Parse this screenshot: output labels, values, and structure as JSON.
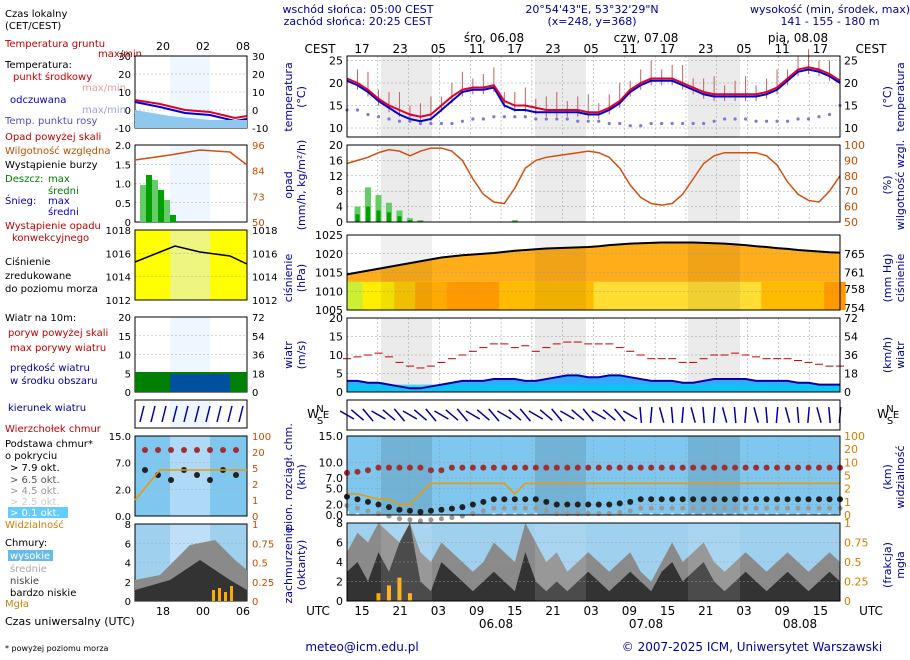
{
  "header": {
    "sunrise": "wschód słońca: 05:00 CEST",
    "sunset": "zachód słońca: 20:25 CEST",
    "coords": "20°54'43\"E, 53°32'29\"N",
    "grid": "(x=248, y=368)",
    "elevation_title": "wysokość (min, środek, max)",
    "elevation_values": "141 - 155 - 180 m"
  },
  "timeline": {
    "local_label": "CEST",
    "utc_label": "UTC",
    "local_hours": [
      "17",
      "23",
      "05",
      "11",
      "17",
      "23",
      "05",
      "11",
      "17",
      "23",
      "05",
      "11",
      "17"
    ],
    "utc_hours": [
      "15",
      "21",
      "03",
      "09",
      "15",
      "21",
      "03",
      "09",
      "15",
      "21",
      "03",
      "09",
      "15"
    ],
    "days_top": [
      "śro, 06.08",
      "czw, 07.08",
      "pią, 08.08"
    ],
    "days_bottom": [
      "06.08",
      "07.08",
      "08.08"
    ]
  },
  "legend": {
    "local_time": "Czas lokalny",
    "local_time_sub": "(CET/CEST)",
    "local_ticks": [
      "20",
      "02",
      "08"
    ],
    "utc_ticks": [
      "18",
      "00",
      "06"
    ],
    "utc_title": "Czas uniwersalny (UTC)",
    "ground_temp": "Temperatura gruntu",
    "ground_temp_sub": "max/min",
    "temperature": "Temperatura:",
    "temp_mid": "punkt środkowy",
    "temp_range": "max/min",
    "felt": "odczuwana",
    "felt_range": "max/min",
    "dew": "Temp. punktu rosy",
    "precip_above_scale": "Opad powyżej skali",
    "humidity": "Wilgotność względna",
    "storm": "Wystąpienie burzy",
    "rain": "Deszcz:",
    "snow": "Śnieg:",
    "max": "max",
    "mean": "średni",
    "precip_occurrence": "Wystąpienie opadu",
    "precip_convective": "konwekcyjnego",
    "pressure_1": "Ciśnienie",
    "pressure_2": "zredukowane",
    "pressure_3": "do poziomu morza",
    "wind_title": "Wiatr na 10m:",
    "gusts_above": "poryw powyżej skali",
    "gusts_max": "max porywy wiatru",
    "wind_speed": "prędkość wiatru",
    "wind_area": "w środku obszaru",
    "wind_dir": "kierunek wiatru",
    "cloud_top": "Wierzchołek chmur",
    "cloud_base_1": "Podstawa chmur*",
    "cloud_base_2": "o pokryciu",
    "okt": [
      "> 7.9 okt.",
      "> 6.5 okt.",
      "> 4.5 okt.",
      "> 2.5 okt.",
      "> 0.1 okt."
    ],
    "visibility": "Widzialność",
    "clouds": "Chmury:",
    "cloud_types": [
      "wysokie",
      "średnie",
      "niskie",
      "bardzo niskie"
    ],
    "fog": "Mgła",
    "footnote": "* powyżej poziomu morza"
  },
  "axes": {
    "temp_left": "temperatura",
    "temp_left_unit": "(°C)",
    "temp_right": "temperatura",
    "temp_right_unit": "(°C)",
    "precip_left": "opad",
    "precip_left_unit": "(mm/h, kg/m²/h)",
    "precip_right": "wilgotność wzgl.",
    "precip_right_unit": "(%)",
    "pres_left": "ciśnienie",
    "pres_left_unit": "(hPa)",
    "pres_right": "ciśnienie",
    "pres_right_unit": "(mm Hg)",
    "wind_left": "wiatr",
    "wind_left_unit": "(m/s)",
    "wind_right": "wiatr",
    "wind_right_unit": "(km/h)",
    "cloud_left_1": "pion. rozciągł. chm.",
    "cloud_left_unit": "(km)",
    "cloud_right": "widzialność",
    "cloud_right_unit": "(km)",
    "cover_left_1": "zachmurzenie",
    "cover_left_unit": "(oktanty)",
    "cover_right": "mgła",
    "cover_right_unit": "(frakcja)",
    "compass": [
      "N",
      "W",
      "S",
      "E"
    ]
  },
  "footer": {
    "email": "meteo@icm.edu.pl",
    "copyright": "© 2007-2025 ICM, Uniwersytet Warszawski"
  },
  "chart_data": [
    {
      "type": "line",
      "title": "temperatura",
      "ylabel": "(°C)",
      "ylim": [
        8,
        26
      ],
      "yticks": [
        10,
        15,
        20,
        25
      ],
      "series": [
        {
          "name": "temperatura",
          "color": "#e0002a",
          "values": [
            21,
            20,
            18.5,
            16.5,
            15,
            14,
            13,
            12.5,
            13,
            15,
            17,
            18.5,
            19,
            19,
            19.5,
            16,
            15,
            15,
            14.5,
            14,
            14,
            14,
            14,
            13.5,
            13.5,
            14.5,
            16,
            18.5,
            20,
            21,
            21,
            21,
            20,
            19,
            18,
            17.5,
            17.5,
            17.5,
            17.5,
            17.5,
            18,
            19,
            21,
            23,
            23.5,
            23,
            22,
            20.5
          ]
        },
        {
          "name": "odczuwana",
          "color": "#0000d0",
          "values": [
            20.5,
            19.5,
            18,
            16,
            14.5,
            13,
            12,
            11.5,
            12,
            14,
            16,
            18,
            18.5,
            18.5,
            19,
            15,
            14,
            14,
            13.5,
            13.5,
            13.5,
            13.5,
            13.5,
            13,
            13,
            14,
            15.5,
            18,
            19.5,
            20.5,
            20.5,
            20.5,
            19.5,
            18.5,
            17.5,
            17,
            17,
            17,
            17,
            17,
            17.5,
            18.5,
            20.5,
            22.5,
            23,
            22.5,
            21.5,
            20
          ]
        },
        {
          "name": "punkt rosy",
          "color": "#7b7bd8",
          "values": [
            14,
            14,
            13,
            12.5,
            12,
            11.5,
            11.5,
            11,
            11,
            11,
            11,
            11.5,
            12,
            12,
            12.5,
            12.5,
            12.5,
            12.5,
            12,
            12,
            12,
            12,
            11.5,
            11.5,
            11.5,
            11,
            11,
            10.5,
            10.5,
            11,
            11,
            11,
            11,
            11,
            11,
            11.5,
            12,
            12,
            12,
            11.5,
            11.5,
            11.5,
            11.5,
            12,
            12,
            12.5,
            13,
            15
          ]
        }
      ]
    },
    {
      "type": "bar",
      "title": "opad / wilgotność",
      "ylim": [
        0,
        20
      ],
      "yticks": [
        0,
        4,
        8,
        12,
        16,
        20
      ],
      "humidity_ylim": [
        50,
        100
      ],
      "humidity_ticks": [
        50,
        60,
        70,
        80,
        90,
        100
      ],
      "precip_max": [
        0,
        4,
        9,
        7,
        5,
        3,
        1,
        0.5,
        0,
        0,
        0,
        0,
        0,
        0,
        0,
        0,
        0.5,
        0,
        0,
        0,
        0,
        0,
        0,
        0,
        0,
        0,
        0,
        0,
        0,
        0,
        0,
        0,
        0,
        0,
        0,
        0,
        0,
        0,
        0,
        0,
        0,
        0,
        0,
        0,
        0,
        0,
        0,
        0
      ],
      "precip_mean": [
        0,
        2,
        4,
        3,
        2.5,
        1.5,
        0.5,
        0.2,
        0,
        0,
        0,
        0,
        0,
        0,
        0,
        0,
        0.2,
        0,
        0,
        0,
        0,
        0,
        0,
        0,
        0,
        0,
        0,
        0,
        0,
        0,
        0,
        0,
        0,
        0,
        0,
        0,
        0,
        0,
        0,
        0,
        0,
        0,
        0,
        0,
        0,
        0,
        0,
        0
      ],
      "humidity": [
        88,
        90,
        92,
        95,
        97,
        96,
        93,
        96,
        98,
        98,
        96,
        90,
        78,
        68,
        63,
        62,
        72,
        85,
        90,
        92,
        93,
        94,
        95,
        96,
        95,
        92,
        85,
        74,
        66,
        62,
        61,
        62,
        68,
        78,
        88,
        93,
        95,
        95,
        95,
        95,
        93,
        87,
        76,
        68,
        64,
        63,
        70,
        80
      ]
    },
    {
      "type": "area",
      "title": "ciśnienie",
      "ylim": [
        1005,
        1025
      ],
      "yticks": [
        1005,
        1010,
        1015,
        1020,
        1025
      ],
      "right_ticks": [
        "754",
        "758",
        "761",
        "765"
      ],
      "values": [
        1014.5,
        1015,
        1015.5,
        1016,
        1016.5,
        1017,
        1017.5,
        1018,
        1018.5,
        1019,
        1019.3,
        1019.6,
        1019.8,
        1020,
        1020.2,
        1020.5,
        1020.8,
        1021,
        1021.2,
        1021.4,
        1021.5,
        1021.6,
        1021.7,
        1021.8,
        1022,
        1022.3,
        1022.5,
        1022.7,
        1022.8,
        1022.9,
        1023,
        1023,
        1023,
        1023,
        1022.9,
        1022.8,
        1022.7,
        1022.5,
        1022.3,
        1022,
        1021.8,
        1021.5,
        1021.3,
        1021,
        1020.8,
        1020.6,
        1020.4,
        1020.3
      ]
    },
    {
      "type": "line",
      "title": "wiatr",
      "ylim": [
        0,
        20
      ],
      "yticks": [
        0,
        5,
        10,
        15,
        20
      ],
      "right_ticks": [
        "0",
        "18",
        "36",
        "54",
        "72"
      ],
      "speed": [
        3,
        3,
        2.5,
        2.5,
        2,
        1.5,
        1,
        1,
        1.5,
        2,
        2.5,
        3,
        3,
        3,
        3.5,
        3.5,
        3.5,
        3,
        3,
        3.5,
        4,
        4.5,
        4.5,
        4,
        4,
        4.5,
        4.5,
        4,
        3.5,
        3,
        3,
        3,
        2.5,
        2.5,
        3,
        3.5,
        3.5,
        3.5,
        3.5,
        3,
        3,
        3,
        3,
        2.5,
        2.5,
        2,
        2,
        2
      ],
      "gusts": [
        9,
        9.5,
        10,
        10.5,
        9.5,
        8,
        7,
        6.5,
        7,
        8,
        9,
        10,
        11,
        12,
        13,
        13,
        12,
        12.5,
        11,
        12,
        13,
        13.5,
        13.5,
        13,
        13,
        13,
        12,
        11,
        10,
        9,
        9,
        9,
        8,
        8,
        9,
        10,
        10,
        10.5,
        10,
        9.5,
        9,
        9,
        9,
        8.5,
        8,
        7.5,
        7,
        7
      ]
    },
    {
      "type": "scatter",
      "title": "chmury / widzialność",
      "ylim": [
        0,
        15
      ],
      "yticks": [
        0,
        2,
        5,
        7,
        10,
        15
      ],
      "right_ticks": [
        "0",
        "1",
        "2",
        "5",
        "10",
        "20",
        "100"
      ],
      "cloud_top": [
        8,
        8.2,
        8.5,
        9,
        9,
        9,
        9,
        9,
        8.5,
        8.5,
        9,
        9,
        9,
        9,
        9,
        9,
        9,
        9,
        9,
        9,
        9,
        9,
        9,
        9,
        9,
        9,
        9,
        9,
        9,
        9,
        9,
        9,
        9,
        9,
        9,
        9,
        9,
        9,
        9,
        9,
        9,
        9,
        9,
        9,
        9,
        9,
        9,
        9
      ],
      "cloud_base": [
        3.5,
        3,
        2.5,
        2,
        1.5,
        1,
        0.8,
        0.6,
        0.8,
        1,
        1.2,
        1.5,
        2,
        2.5,
        3,
        3,
        3,
        3,
        3,
        2.5,
        2,
        2,
        2,
        2,
        2,
        2,
        2.2,
        2.5,
        3,
        3,
        3,
        3,
        3,
        3,
        3,
        3,
        3,
        3,
        3,
        3,
        3,
        3,
        3,
        3,
        3,
        3,
        3,
        3
      ],
      "visibility": [
        4,
        4,
        3.5,
        3,
        3,
        2,
        2,
        4,
        6,
        6,
        6,
        6,
        6,
        6,
        6,
        6,
        4,
        6,
        6,
        6,
        6,
        6,
        6,
        6,
        6,
        6,
        6,
        6,
        6,
        6,
        6,
        6,
        6,
        6,
        6,
        6,
        6,
        6,
        6,
        6,
        6,
        6,
        6,
        6,
        6,
        6,
        6,
        6
      ]
    },
    {
      "type": "area",
      "title": "zachmurzenie",
      "ylim": [
        0,
        8
      ],
      "yticks": [
        0,
        2,
        4,
        6,
        8
      ],
      "right_ticks": [
        "0",
        "0.25",
        "0.5",
        "0.75",
        "1"
      ],
      "low": [
        3,
        4,
        2,
        5,
        3,
        6,
        8,
        2,
        1,
        4,
        3,
        2,
        1,
        2,
        3,
        2,
        1,
        5,
        2,
        1,
        2,
        1,
        2,
        3,
        2,
        1,
        2,
        3,
        2,
        1,
        3,
        4,
        2,
        3,
        4,
        2,
        1,
        2,
        3,
        2,
        1,
        2,
        3,
        2,
        1,
        2,
        3,
        2
      ],
      "mid": [
        5,
        7,
        6,
        8,
        7,
        6,
        8,
        5,
        4,
        6,
        5,
        4,
        3,
        4,
        6,
        5,
        4,
        8,
        6,
        4,
        5,
        3,
        4,
        5,
        4,
        3,
        4,
        5,
        3,
        2,
        4,
        6,
        4,
        5,
        6,
        4,
        3,
        4,
        5,
        4,
        3,
        4,
        5,
        4,
        3,
        4,
        5,
        4
      ],
      "fog": [
        0,
        0,
        0,
        0.1,
        0.2,
        0.3,
        0.1,
        0,
        0,
        0,
        0,
        0,
        0,
        0,
        0,
        0,
        0,
        0,
        0,
        0,
        0,
        0,
        0,
        0,
        0,
        0,
        0,
        0,
        0,
        0,
        0,
        0,
        0,
        0,
        0,
        0,
        0,
        0,
        0,
        0,
        0,
        0,
        0,
        0,
        0,
        0,
        0,
        0
      ]
    }
  ]
}
